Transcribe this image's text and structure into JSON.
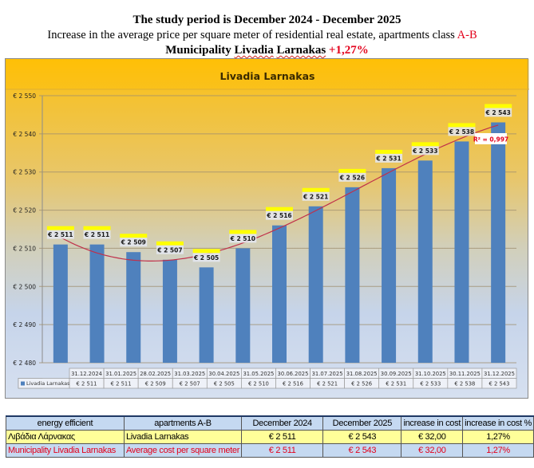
{
  "header": {
    "line1": "The study period is December 2024 - December 2025",
    "line2_text": "Increase in the average price per square meter of residential real estate, apartments class ",
    "line2_class": "A-B",
    "line3_prefix": "Municipality ",
    "line3_name1": "Livadia",
    "line3_name2": "Larnakas",
    "line3_change": "+1,27%"
  },
  "colors": {
    "bar": "#4f81bd",
    "trendline": "#c0304a",
    "label_highlight": "#ffff00",
    "accent_red": "#e3001b"
  },
  "chart_data": {
    "type": "bar",
    "title": "Livadia Larnakas",
    "series_name": "Livadia Larnakas",
    "categories": [
      "31.12.2024",
      "31.01.2025",
      "28.02.2025",
      "31.03.2025",
      "30.04.2025",
      "31.05.2025",
      "30.06.2025",
      "31.07.2025",
      "31.08.2025",
      "30.09.2025",
      "31.10.2025",
      "30.11.2025",
      "31.12.2025"
    ],
    "values": [
      2511,
      2511,
      2509,
      2507,
      2505,
      2510,
      2516,
      2521,
      2526,
      2531,
      2533,
      2538,
      2543
    ],
    "value_labels": [
      "€ 2 511",
      "€ 2 511",
      "€ 2 509",
      "€ 2 507",
      "€ 2 505",
      "€ 2 510",
      "€ 2 516",
      "€ 2 521",
      "€ 2 526",
      "€ 2 531",
      "€ 2 533",
      "€ 2 538",
      "€ 2 543"
    ],
    "table_values": [
      "€ 2 511",
      "€ 2 511",
      "€ 2 509",
      "€ 2 507",
      "€ 2 505",
      "€ 2 510",
      "€ 2 516",
      "€ 2 521",
      "€ 2 526",
      "€ 2 531",
      "€ 2 533",
      "€ 2 538",
      "€ 2 543"
    ],
    "ylim": [
      2480,
      2550
    ],
    "yticks": [
      2480,
      2490,
      2500,
      2510,
      2520,
      2530,
      2540,
      2550
    ],
    "ytick_labels": [
      "€ 2 480",
      "€ 2 490",
      "€ 2 500",
      "€ 2 510",
      "€ 2 520",
      "€ 2 530",
      "€ 2 540",
      "€ 2 550"
    ],
    "trendline": {
      "type": "polynomial",
      "r2_label": "R² = 0,997"
    },
    "grid": true,
    "legend": "data-table"
  },
  "summary_table": {
    "headers": [
      "energy efficient",
      "apartments A-B",
      "December 2024",
      "December 2025",
      "increase in cost",
      "increase in cost %"
    ],
    "rows": [
      [
        "Λιβάδια Λάρνακας",
        "Livadia Larnakas",
        "€ 2 511",
        "€ 2 543",
        "€ 32,00",
        "1,27%"
      ],
      [
        "Municipality Livadia Larnakas",
        "Average cost per square meter",
        "€ 2 511",
        "€ 2 543",
        "€ 32,00",
        "1,27%"
      ]
    ]
  }
}
